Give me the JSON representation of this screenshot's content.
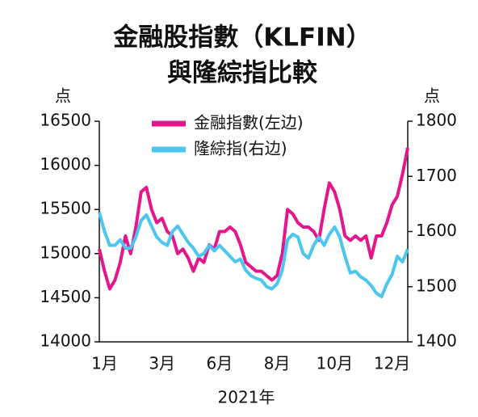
{
  "chart_data": {
    "type": "line",
    "title": [
      "金融股指數（KLFIN）",
      "與隆綜指比較"
    ],
    "ylabel": "点",
    "y2label": "点",
    "xlabel": "2021年",
    "categories": [
      null,
      "1月",
      null,
      null,
      null,
      null,
      null,
      null,
      null,
      null,
      null,
      null,
      "3月",
      null,
      null,
      null,
      null,
      null,
      null,
      null,
      null,
      null,
      null,
      "6月",
      null,
      null,
      null,
      null,
      null,
      null,
      null,
      null,
      null,
      null,
      "8月",
      null,
      null,
      null,
      null,
      null,
      null,
      null,
      null,
      null,
      null,
      "10月",
      null,
      null,
      null,
      null,
      null,
      null,
      null,
      null,
      null,
      null,
      "12月",
      null,
      null,
      null
    ],
    "series": [
      {
        "name": "金融指數(左边)",
        "color": "#e5168c",
        "axis": "y",
        "values": [
          15050,
          14800,
          14600,
          14700,
          14900,
          15200,
          15000,
          15300,
          15700,
          15750,
          15500,
          15350,
          15400,
          15250,
          15200,
          15000,
          15050,
          14950,
          14800,
          14950,
          14900,
          15100,
          15050,
          15250,
          15250,
          15300,
          15250,
          15100,
          14900,
          14850,
          14800,
          14800,
          14750,
          14700,
          14750,
          15000,
          15500,
          15450,
          15350,
          15300,
          15300,
          15250,
          15150,
          15500,
          15800,
          15700,
          15500,
          15200,
          15150,
          15200,
          15150,
          15200,
          14950,
          15200,
          15200,
          15350,
          15550,
          15650,
          15900,
          16200
        ]
      },
      {
        "name": "隆綜指(右边)",
        "color": "#4cc6ee",
        "axis": "y2",
        "values": [
          1635,
          1600,
          1575,
          1575,
          1585,
          1570,
          1570,
          1590,
          1620,
          1630,
          1610,
          1590,
          1580,
          1575,
          1600,
          1610,
          1595,
          1580,
          1570,
          1555,
          1560,
          1575,
          1565,
          1575,
          1565,
          1555,
          1545,
          1550,
          1530,
          1520,
          1515,
          1512,
          1500,
          1496,
          1505,
          1530,
          1585,
          1595,
          1590,
          1560,
          1552,
          1575,
          1590,
          1575,
          1595,
          1608,
          1590,
          1555,
          1525,
          1528,
          1518,
          1512,
          1502,
          1488,
          1482,
          1505,
          1522,
          1555,
          1545,
          1568
        ]
      }
    ],
    "ylim": [
      14000,
      16500
    ],
    "yticks": [
      14000,
      14500,
      15000,
      15500,
      16000,
      16500
    ],
    "y2lim": [
      1400,
      1800
    ],
    "y2ticks": [
      1400,
      1500,
      1600,
      1700,
      1800
    ],
    "grid": false
  }
}
